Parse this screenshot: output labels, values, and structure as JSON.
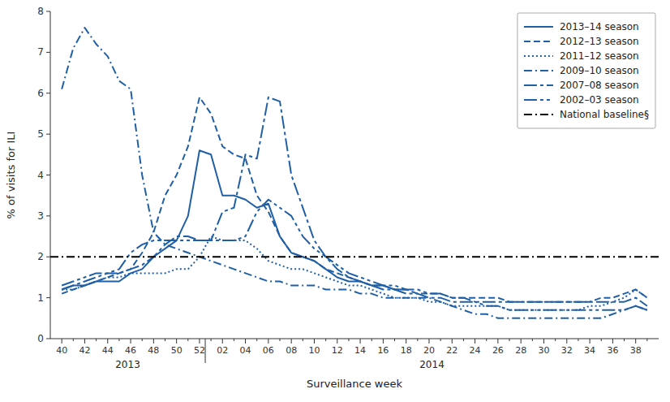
{
  "chart_data": {
    "type": "line",
    "xlabel": "Surveillance week",
    "ylabel": "% of visits for ILI",
    "categories": [
      "40",
      null,
      "42",
      null,
      "44",
      null,
      "46",
      null,
      "48",
      null,
      "50",
      null,
      "52",
      null,
      "02",
      null,
      "04",
      null,
      "06",
      null,
      "08",
      null,
      "10",
      null,
      "12",
      null,
      "14",
      null,
      "16",
      null,
      "18",
      null,
      "20",
      null,
      "22",
      null,
      "24",
      null,
      "26",
      null,
      "28",
      null,
      "30",
      null,
      "32",
      null,
      "34",
      null,
      "36",
      null,
      "38",
      null
    ],
    "ylim": [
      0,
      8
    ],
    "yticks": [
      0,
      1,
      2,
      3,
      4,
      5,
      6,
      7,
      8
    ],
    "grid": false,
    "legend": "upper right",
    "series": [
      {
        "name": "2013–14 season",
        "color": "#1F5FA6",
        "line_style": "solid",
        "values": [
          1.2,
          1.3,
          1.3,
          1.4,
          1.4,
          1.4,
          1.6,
          1.7,
          2.0,
          2.2,
          2.4,
          3.0,
          4.6,
          4.5,
          3.5,
          3.5,
          3.4,
          3.2,
          3.3,
          2.5,
          2.1,
          2.0,
          1.9,
          1.7,
          1.5,
          1.4,
          1.4,
          1.3,
          1.3,
          1.2,
          1.2,
          null,
          null,
          null,
          null,
          null,
          null,
          null,
          null,
          null,
          null,
          null,
          null,
          null,
          null,
          null,
          null,
          null,
          null,
          null,
          null,
          null
        ]
      },
      {
        "name": "2012–13 season",
        "color": "#1F5FA6",
        "line_style": "dashed",
        "values": [
          1.1,
          1.2,
          1.3,
          1.4,
          1.5,
          1.6,
          1.7,
          2.1,
          2.6,
          3.5,
          4.0,
          4.7,
          5.9,
          5.5,
          4.7,
          4.5,
          4.4,
          3.5,
          3.1,
          2.5,
          2.1,
          2.0,
          1.9,
          1.7,
          1.6,
          1.5,
          1.4,
          1.3,
          1.3,
          1.2,
          1.2,
          1.1,
          1.1,
          1.1,
          1.0,
          1.0,
          1.0,
          1.0,
          1.0,
          0.9,
          0.9,
          0.9,
          0.9,
          0.9,
          0.9,
          0.9,
          0.9,
          1.0,
          1.0,
          1.1,
          1.2,
          1.0
        ]
      },
      {
        "name": "2011–12 season",
        "color": "#1F5FA6",
        "line_style": "dotted",
        "values": [
          1.2,
          1.2,
          1.3,
          1.4,
          1.5,
          1.5,
          1.6,
          1.6,
          1.6,
          1.6,
          1.7,
          1.7,
          2.0,
          2.5,
          2.4,
          2.4,
          2.4,
          2.2,
          1.9,
          1.8,
          1.7,
          1.7,
          1.6,
          1.5,
          1.4,
          1.3,
          1.3,
          1.2,
          1.1,
          1.0,
          1.0,
          1.0,
          0.9,
          0.9,
          0.8,
          0.8,
          0.8,
          0.8,
          0.8,
          0.7,
          0.7,
          0.7,
          0.7,
          0.7,
          0.7,
          0.7,
          0.8,
          0.8,
          0.9,
          1.0,
          1.2,
          1.0
        ]
      },
      {
        "name": "2009–10 season",
        "color": "#1F5FA6",
        "line_style": "dashdot",
        "values": [
          6.1,
          7.1,
          7.6,
          7.2,
          6.9,
          6.3,
          6.1,
          4.0,
          2.6,
          2.3,
          2.2,
          2.1,
          2.0,
          1.9,
          1.8,
          1.7,
          1.6,
          1.5,
          1.4,
          1.4,
          1.3,
          1.3,
          1.3,
          1.2,
          1.2,
          1.2,
          1.1,
          1.1,
          1.0,
          1.0,
          1.0,
          1.0,
          1.0,
          0.9,
          0.8,
          0.7,
          0.6,
          0.6,
          0.5,
          0.5,
          0.5,
          0.5,
          0.5,
          0.5,
          0.5,
          0.5,
          0.5,
          0.5,
          0.6,
          0.7,
          0.8,
          0.7
        ]
      },
      {
        "name": "2007–08 season",
        "color": "#1F5FA6",
        "line_style": "longdashdot",
        "values": [
          1.2,
          1.3,
          1.4,
          1.5,
          1.6,
          1.6,
          1.7,
          1.8,
          2.0,
          2.3,
          2.5,
          2.5,
          2.4,
          2.4,
          3.1,
          3.2,
          4.5,
          4.4,
          5.9,
          5.8,
          4.0,
          3.2,
          2.4,
          2.0,
          1.7,
          1.5,
          1.4,
          1.3,
          1.2,
          1.2,
          1.1,
          1.1,
          1.0,
          1.0,
          0.9,
          0.9,
          0.9,
          0.9,
          0.9,
          0.9,
          0.9,
          0.9,
          0.9,
          0.9,
          0.9,
          0.9,
          0.9,
          0.9,
          0.9,
          0.9,
          1.0,
          0.8
        ]
      },
      {
        "name": "2002–03 season",
        "color": "#1F5FA6",
        "line_style": "longdashdotdot",
        "values": [
          1.3,
          1.4,
          1.5,
          1.6,
          1.6,
          1.7,
          2.1,
          2.3,
          2.4,
          2.4,
          2.4,
          2.4,
          2.4,
          2.4,
          2.4,
          2.4,
          2.5,
          3.1,
          3.4,
          3.2,
          3.0,
          2.5,
          2.2,
          2.0,
          1.8,
          1.6,
          1.5,
          1.4,
          1.3,
          1.3,
          1.2,
          1.2,
          1.1,
          1.1,
          1.0,
          1.0,
          0.9,
          0.8,
          0.8,
          0.7,
          0.7,
          0.7,
          0.7,
          0.7,
          0.7,
          0.7,
          0.7,
          0.7,
          0.7,
          0.7,
          0.8,
          0.7
        ]
      }
    ],
    "reference_lines": [
      {
        "name": "National baseline§",
        "value": 2.0,
        "color": "#000000",
        "line_style": "dashdot"
      }
    ],
    "annotations": [
      {
        "text": "2013"
      },
      {
        "text": "2014"
      }
    ]
  }
}
